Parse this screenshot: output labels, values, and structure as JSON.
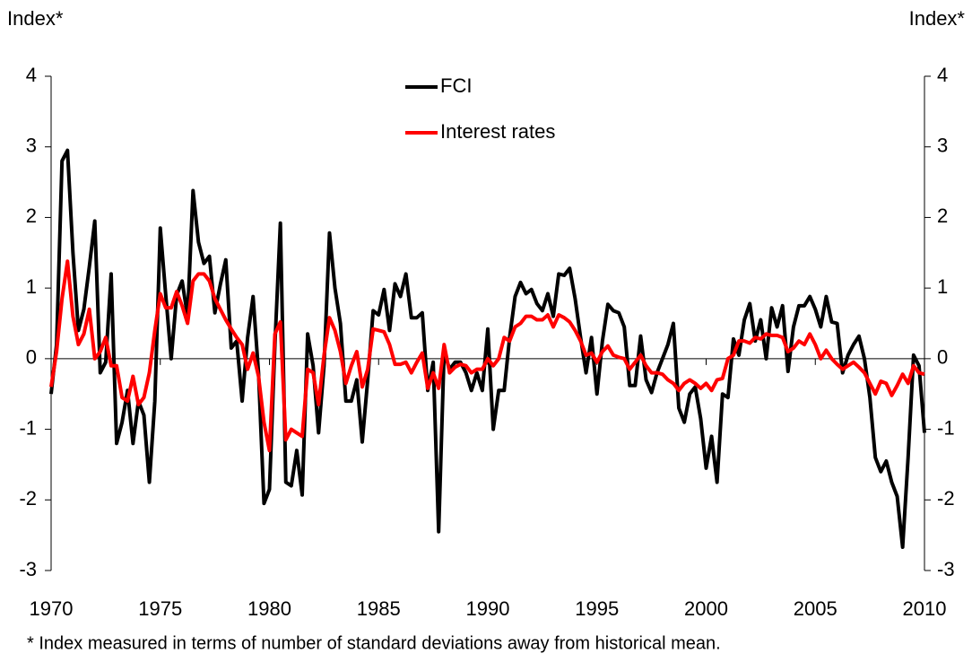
{
  "chart_data": {
    "type": "line",
    "y_label": "Index*",
    "y2_label": "Index*",
    "note": "* Index measured in terms of number of standard deviations away from historical mean.",
    "legend": "top-center",
    "xlim": [
      1970,
      2010
    ],
    "xticks": [
      1970,
      1975,
      1980,
      1985,
      1990,
      1995,
      2000,
      2005,
      2010
    ],
    "ylim": [
      -3,
      4
    ],
    "yticks": [
      -3,
      -2,
      -1,
      0,
      1,
      2,
      3,
      4
    ],
    "y2lim": [
      -3,
      4
    ],
    "y2ticks": [
      -3,
      -2,
      -1,
      0,
      1,
      2,
      3,
      4
    ],
    "x": [
      1970,
      1970.25,
      1970.5,
      1970.75,
      1971,
      1971.25,
      1971.5,
      1971.75,
      1972,
      1972.25,
      1972.5,
      1972.75,
      1973,
      1973.25,
      1973.5,
      1973.75,
      1974,
      1974.25,
      1974.5,
      1974.75,
      1975,
      1975.25,
      1975.5,
      1975.75,
      1976,
      1976.25,
      1976.5,
      1976.75,
      1977,
      1977.25,
      1977.5,
      1977.75,
      1978,
      1978.25,
      1978.5,
      1978.75,
      1979,
      1979.25,
      1979.5,
      1979.75,
      1980,
      1980.25,
      1980.5,
      1980.75,
      1981,
      1981.25,
      1981.5,
      1981.75,
      1982,
      1982.25,
      1982.5,
      1982.75,
      1983,
      1983.25,
      1983.5,
      1983.75,
      1984,
      1984.25,
      1984.5,
      1984.75,
      1985,
      1985.25,
      1985.5,
      1985.75,
      1986,
      1986.25,
      1986.5,
      1986.75,
      1987,
      1987.25,
      1987.5,
      1987.75,
      1988,
      1988.25,
      1988.5,
      1988.75,
      1989,
      1989.25,
      1989.5,
      1989.75,
      1990,
      1990.25,
      1990.5,
      1990.75,
      1991,
      1991.25,
      1991.5,
      1991.75,
      1992,
      1992.25,
      1992.5,
      1992.75,
      1993,
      1993.25,
      1993.5,
      1993.75,
      1994,
      1994.25,
      1994.5,
      1994.75,
      1995,
      1995.25,
      1995.5,
      1995.75,
      1996,
      1996.25,
      1996.5,
      1996.75,
      1997,
      1997.25,
      1997.5,
      1997.75,
      1998,
      1998.25,
      1998.5,
      1998.75,
      1999,
      1999.25,
      1999.5,
      1999.75,
      2000,
      2000.25,
      2000.5,
      2000.75,
      2001,
      2001.25,
      2001.5,
      2001.75,
      2002,
      2002.25,
      2002.5,
      2002.75,
      2003,
      2003.25,
      2003.5,
      2003.75,
      2004,
      2004.25,
      2004.5,
      2004.75,
      2005,
      2005.25,
      2005.5,
      2005.75,
      2006,
      2006.25,
      2006.5,
      2006.75,
      2007,
      2007.25,
      2007.5,
      2007.75,
      2008,
      2008.25,
      2008.5,
      2008.75,
      2009,
      2009.25,
      2009.5,
      2009.75,
      2010
    ],
    "series": [
      {
        "name": "FCI",
        "color": "#000000",
        "values": [
          -0.5,
          0.2,
          2.8,
          2.95,
          1.5,
          0.4,
          0.7,
          1.3,
          1.95,
          -0.2,
          -0.05,
          1.2,
          -1.2,
          -0.9,
          -0.45,
          -1.2,
          -0.6,
          -0.8,
          -1.75,
          -0.6,
          1.85,
          0.9,
          0.0,
          0.9,
          1.1,
          0.6,
          2.38,
          1.65,
          1.35,
          1.45,
          0.65,
          1.05,
          1.4,
          0.15,
          0.25,
          -0.6,
          0.3,
          0.88,
          -0.2,
          -2.05,
          -1.85,
          0.2,
          1.92,
          -1.75,
          -1.8,
          -1.3,
          -1.93,
          0.35,
          -0.1,
          -1.05,
          -0.1,
          1.78,
          1.0,
          0.5,
          -0.6,
          -0.6,
          -0.3,
          -1.18,
          -0.3,
          0.68,
          0.62,
          0.98,
          0.4,
          1.06,
          0.88,
          1.2,
          0.58,
          0.58,
          0.65,
          -0.45,
          -0.05,
          -2.45,
          0.1,
          -0.15,
          -0.05,
          -0.05,
          -0.2,
          -0.45,
          -0.2,
          -0.45,
          0.42,
          -1.0,
          -0.45,
          -0.45,
          0.3,
          0.88,
          1.08,
          0.92,
          0.98,
          0.78,
          0.68,
          0.92,
          0.6,
          1.2,
          1.18,
          1.28,
          0.85,
          0.3,
          -0.2,
          0.3,
          -0.5,
          0.25,
          0.77,
          0.68,
          0.65,
          0.45,
          -0.38,
          -0.38,
          0.32,
          -0.3,
          -0.48,
          -0.2,
          0.0,
          0.2,
          0.5,
          -0.7,
          -0.9,
          -0.5,
          -0.4,
          -0.85,
          -1.55,
          -1.1,
          -1.75,
          -0.5,
          -0.55,
          0.28,
          0.05,
          0.55,
          0.78,
          0.25,
          0.55,
          0.0,
          0.72,
          0.45,
          0.75,
          -0.18,
          0.45,
          0.75,
          0.75,
          0.88,
          0.7,
          0.45,
          0.88,
          0.52,
          0.5,
          -0.2,
          0.05,
          0.2,
          0.32,
          0.0,
          -0.55,
          -1.4,
          -1.6,
          -1.45,
          -1.75,
          -1.95,
          -2.67,
          -1.4,
          0.05,
          -0.1,
          -1.05
        ]
      },
      {
        "name": "Interest rates",
        "color": "#ff0000",
        "values": [
          -0.4,
          0.1,
          0.85,
          1.38,
          0.6,
          0.2,
          0.35,
          0.7,
          0.0,
          0.1,
          0.3,
          -0.1,
          -0.1,
          -0.55,
          -0.6,
          -0.25,
          -0.65,
          -0.55,
          -0.2,
          0.4,
          0.92,
          0.72,
          0.72,
          0.95,
          0.75,
          0.5,
          1.1,
          1.2,
          1.2,
          1.1,
          0.85,
          0.7,
          0.55,
          0.42,
          0.3,
          0.2,
          -0.15,
          0.08,
          -0.25,
          -0.9,
          -1.3,
          0.35,
          0.52,
          -1.15,
          -1.0,
          -1.05,
          -1.1,
          -0.15,
          -0.2,
          -0.65,
          0.05,
          0.58,
          0.4,
          0.1,
          -0.35,
          -0.1,
          0.1,
          -0.4,
          -0.15,
          0.42,
          0.4,
          0.38,
          0.2,
          -0.08,
          -0.08,
          -0.05,
          -0.2,
          -0.05,
          0.08,
          -0.42,
          -0.2,
          -0.42,
          0.2,
          -0.2,
          -0.12,
          -0.08,
          -0.1,
          -0.2,
          -0.15,
          -0.15,
          0.0,
          -0.1,
          0.0,
          0.3,
          0.25,
          0.45,
          0.5,
          0.6,
          0.6,
          0.55,
          0.55,
          0.62,
          0.45,
          0.62,
          0.58,
          0.52,
          0.4,
          0.25,
          0.05,
          0.08,
          -0.05,
          0.1,
          0.18,
          0.05,
          0.02,
          0.0,
          -0.15,
          -0.05,
          0.05,
          -0.1,
          -0.2,
          -0.2,
          -0.22,
          -0.3,
          -0.35,
          -0.45,
          -0.35,
          -0.3,
          -0.35,
          -0.42,
          -0.35,
          -0.45,
          -0.3,
          -0.28,
          0.0,
          0.05,
          0.25,
          0.25,
          0.22,
          0.3,
          0.28,
          0.35,
          0.33,
          0.33,
          0.3,
          0.1,
          0.15,
          0.25,
          0.2,
          0.35,
          0.2,
          0.0,
          0.12,
          0.0,
          -0.08,
          -0.15,
          -0.1,
          -0.05,
          -0.12,
          -0.2,
          -0.35,
          -0.5,
          -0.32,
          -0.35,
          -0.52,
          -0.38,
          -0.22,
          -0.35,
          -0.1,
          -0.2,
          -0.22
        ]
      }
    ]
  }
}
